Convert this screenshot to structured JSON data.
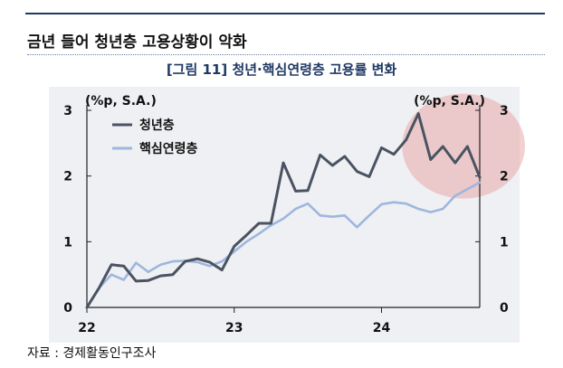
{
  "page_title": "금년 들어 청년층 고용상황이 악화",
  "source": "자료 : 경제활동인구조사",
  "colors": {
    "youth": "#4a5361",
    "core": "#9fb6de",
    "highlight": "#e9a9a9",
    "title_rule": "#1f3864"
  },
  "chart_data": {
    "type": "line",
    "title": "[그림 11] 청년·핵심연령층 고용률 변화",
    "left_unit": "(%p, S.A.)",
    "right_unit": "(%p, S.A.)",
    "y_ticks": [
      "0",
      "1",
      "2",
      "3"
    ],
    "x_tick_labels": [
      "22",
      "23",
      "24"
    ],
    "ylim": [
      0,
      3
    ],
    "x_start": "2022-01",
    "grid": false,
    "legend_position": "top-left",
    "series": [
      {
        "name": "청년층",
        "values": [
          0,
          0.3,
          0.65,
          0.63,
          0.4,
          0.41,
          0.48,
          0.5,
          0.7,
          0.74,
          0.69,
          0.57,
          0.93,
          1.1,
          1.28,
          1.28,
          2.2,
          1.77,
          1.78,
          2.32,
          2.16,
          2.3,
          2.07,
          1.99,
          2.43,
          2.33,
          2.55,
          2.95,
          2.25,
          2.45,
          2.2,
          2.45,
          1.98
        ]
      },
      {
        "name": "핵심연령층",
        "values": [
          0,
          0.3,
          0.5,
          0.42,
          0.68,
          0.54,
          0.65,
          0.7,
          0.71,
          0.69,
          0.63,
          0.7,
          0.85,
          1.0,
          1.12,
          1.25,
          1.35,
          1.5,
          1.58,
          1.4,
          1.38,
          1.4,
          1.22,
          1.4,
          1.57,
          1.6,
          1.58,
          1.5,
          1.45,
          1.5,
          1.7,
          1.8,
          1.9
        ]
      }
    ],
    "highlight_region": {
      "x_from": "2024-04",
      "x_to": "2024-09",
      "y_center": 2.4
    }
  }
}
